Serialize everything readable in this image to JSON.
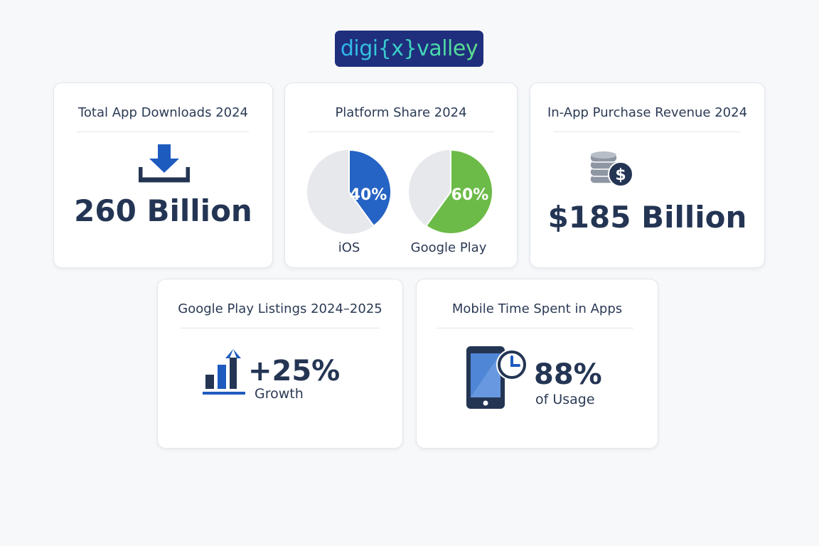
{
  "brand": {
    "logo_text": "digi{x}valley"
  },
  "colors": {
    "navy": "#243554",
    "ios_blue": "#2563c4",
    "play_green": "#6cbb48",
    "pie_remainder": "#e6e8ec",
    "icon_blue": "#1e5bbf",
    "logo_bg": "#1f2f7d"
  },
  "cards": {
    "downloads": {
      "title": "Total App Downloads 2024",
      "value": "260 Billion",
      "icon": "download-icon"
    },
    "platform": {
      "title": "Platform Share 2024",
      "icon": "pie-chart"
    },
    "iap": {
      "title": "In-App Purchase Revenue 2024",
      "value": "$185 Billion",
      "icon": "coin-stack-dollar-icon"
    },
    "listings": {
      "title": "Google Play Listings 2024–2025",
      "value": "+25%",
      "caption": "Growth",
      "icon": "bar-growth-arrow-icon"
    },
    "time_spent": {
      "title": "Mobile Time Spent in Apps",
      "value": "88%",
      "caption": "of Usage",
      "icon": "phone-clock-icon"
    }
  },
  "chart_data": [
    {
      "type": "pie",
      "title": "Platform Share 2024",
      "slices": [
        {
          "name": "iOS",
          "value": 40,
          "label": "40%",
          "color": "#2563c4"
        },
        {
          "name": "Google Play",
          "value": 60,
          "label": "60%",
          "color": "#6cbb48"
        }
      ]
    }
  ]
}
